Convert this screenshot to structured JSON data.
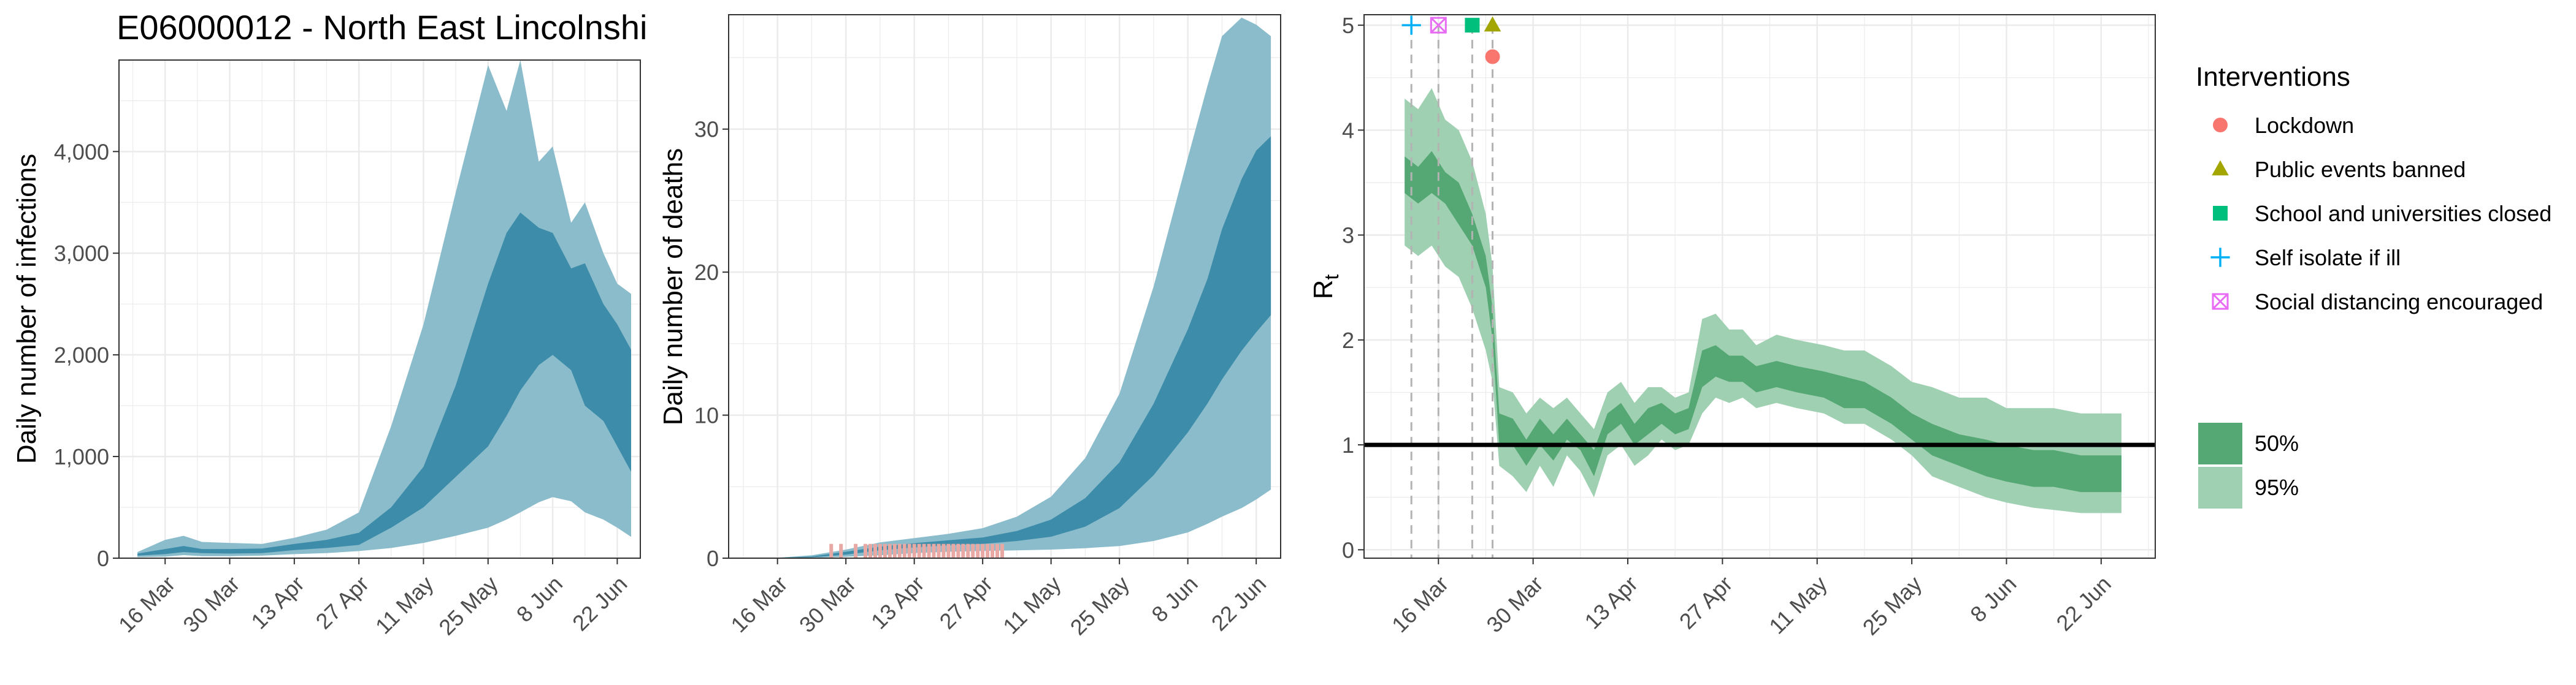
{
  "title": "E06000012 - North East Lincolnshi",
  "colors": {
    "band_95_blue": "#8bbccc",
    "band_50_blue": "#3d8ca9",
    "band_95_green": "#9fd0b2",
    "band_50_green": "#55a873",
    "deaths_bar": "#e8a9a4",
    "grid": "#ebebeb",
    "panel_border": "#333333",
    "lockdown": "#f8766d",
    "public_events": "#a3a500",
    "schools": "#00bf7d",
    "self_isolate": "#00b0f6",
    "social_distancing": "#e76bf3"
  },
  "chart_data": [
    {
      "type": "area",
      "ylabel": "Daily number of infections",
      "xlim": [
        "2020-03-06",
        "2020-06-27"
      ],
      "ylim": [
        0,
        4900
      ],
      "x_ticks": [
        "16 Mar",
        "30 Mar",
        "13 Apr",
        "27 Apr",
        "11 May",
        "25 May",
        "8 Jun",
        "22 Jun"
      ],
      "y_ticks": [
        {
          "value": 0,
          "label": "0"
        },
        {
          "value": 1000,
          "label": "1,000"
        },
        {
          "value": 2000,
          "label": "2,000"
        },
        {
          "value": 3000,
          "label": "3,000"
        },
        {
          "value": 4000,
          "label": "4,000"
        }
      ],
      "dates": [
        "2020-03-10",
        "2020-03-16",
        "2020-03-20",
        "2020-03-24",
        "2020-03-30",
        "2020-04-06",
        "2020-04-13",
        "2020-04-20",
        "2020-04-27",
        "2020-05-04",
        "2020-05-11",
        "2020-05-18",
        "2020-05-25",
        "2020-05-29",
        "2020-06-01",
        "2020-06-05",
        "2020-06-08",
        "2020-06-12",
        "2020-06-15",
        "2020-06-19",
        "2020-06-22",
        "2020-06-25"
      ],
      "ci95": {
        "low": [
          10,
          15,
          30,
          20,
          20,
          25,
          40,
          50,
          70,
          100,
          150,
          220,
          300,
          380,
          450,
          550,
          600,
          560,
          450,
          380,
          300,
          210
        ],
        "high": [
          60,
          180,
          220,
          160,
          150,
          140,
          200,
          280,
          450,
          1300,
          2300,
          3600,
          4850,
          4400,
          4900,
          3900,
          4050,
          3300,
          3500,
          3000,
          2700,
          2600
        ]
      },
      "ci50": {
        "low": [
          25,
          40,
          60,
          50,
          45,
          50,
          80,
          100,
          130,
          300,
          500,
          800,
          1100,
          1400,
          1650,
          1900,
          2000,
          1850,
          1500,
          1350,
          1100,
          850
        ],
        "high": [
          45,
          90,
          120,
          90,
          90,
          95,
          140,
          180,
          250,
          500,
          900,
          1700,
          2700,
          3200,
          3400,
          3250,
          3200,
          2850,
          2900,
          2500,
          2300,
          2050
        ]
      }
    },
    {
      "type": "area",
      "ylabel": "Daily number of deaths",
      "xlim": [
        "2020-03-06",
        "2020-06-27"
      ],
      "ylim": [
        0,
        38
      ],
      "x_ticks": [
        "16 Mar",
        "30 Mar",
        "13 Apr",
        "27 Apr",
        "11 May",
        "25 May",
        "8 Jun",
        "22 Jun"
      ],
      "y_ticks": [
        {
          "value": 0,
          "label": "0"
        },
        {
          "value": 10,
          "label": "10"
        },
        {
          "value": 20,
          "label": "20"
        },
        {
          "value": 30,
          "label": "30"
        }
      ],
      "dates": [
        "2020-03-10",
        "2020-03-16",
        "2020-03-23",
        "2020-03-30",
        "2020-04-06",
        "2020-04-13",
        "2020-04-20",
        "2020-04-27",
        "2020-05-04",
        "2020-05-11",
        "2020-05-18",
        "2020-05-25",
        "2020-06-01",
        "2020-06-08",
        "2020-06-12",
        "2020-06-15",
        "2020-06-19",
        "2020-06-22",
        "2020-06-25"
      ],
      "ci95": {
        "low": [
          0,
          0,
          0.02,
          0.1,
          0.2,
          0.35,
          0.45,
          0.5,
          0.55,
          0.6,
          0.7,
          0.85,
          1.2,
          1.8,
          2.4,
          2.9,
          3.5,
          4.1,
          4.8
        ],
        "high": [
          0.01,
          0.03,
          0.2,
          0.6,
          1.1,
          1.4,
          1.7,
          2.1,
          2.9,
          4.3,
          7.0,
          11.5,
          19.0,
          28.0,
          33.0,
          36.5,
          37.8,
          37.3,
          36.5
        ]
      },
      "ci50": {
        "low": [
          0,
          0.01,
          0.06,
          0.25,
          0.55,
          0.75,
          0.9,
          1.0,
          1.2,
          1.5,
          2.2,
          3.5,
          5.8,
          8.8,
          10.8,
          12.5,
          14.5,
          15.8,
          17.0
        ],
        "high": [
          0,
          0.02,
          0.12,
          0.45,
          0.8,
          1.05,
          1.25,
          1.45,
          1.9,
          2.7,
          4.2,
          6.7,
          10.8,
          16.0,
          19.5,
          23.0,
          26.5,
          28.5,
          29.5
        ]
      },
      "observed_dates": [
        "2020-03-27",
        "2020-03-29",
        "2020-04-01",
        "2020-04-03",
        "2020-04-04",
        "2020-04-05",
        "2020-04-06",
        "2020-04-07",
        "2020-04-08",
        "2020-04-09",
        "2020-04-10",
        "2020-04-11",
        "2020-04-12",
        "2020-04-13",
        "2020-04-14",
        "2020-04-15",
        "2020-04-16",
        "2020-04-17",
        "2020-04-18",
        "2020-04-19",
        "2020-04-20",
        "2020-04-21",
        "2020-04-22",
        "2020-04-23",
        "2020-04-24",
        "2020-04-25",
        "2020-04-26",
        "2020-04-27",
        "2020-04-28",
        "2020-04-29",
        "2020-04-30",
        "2020-05-01"
      ],
      "observed_deaths": [
        1,
        1,
        1,
        1,
        1,
        1,
        1,
        1,
        1,
        1,
        1,
        1,
        1,
        1,
        1,
        1,
        1,
        1,
        1,
        1,
        1,
        1,
        1,
        1,
        1,
        1,
        1,
        1,
        1,
        1,
        1,
        1
      ]
    },
    {
      "type": "area",
      "ylabel_main": "R",
      "ylabel_sub": "t",
      "xlim": [
        "2020-03-05",
        "2020-06-30"
      ],
      "ylim": [
        -0.08,
        5.1
      ],
      "x_ticks": [
        "16 Mar",
        "30 Mar",
        "13 Apr",
        "27 Apr",
        "11 May",
        "25 May",
        "8 Jun",
        "22 Jun"
      ],
      "y_ticks": [
        {
          "value": 0,
          "label": "0"
        },
        {
          "value": 1,
          "label": "1"
        },
        {
          "value": 2,
          "label": "2"
        },
        {
          "value": 3,
          "label": "3"
        },
        {
          "value": 4,
          "label": "4"
        },
        {
          "value": 5,
          "label": "5"
        }
      ],
      "reference_line": 1,
      "dates": [
        "2020-03-11",
        "2020-03-13",
        "2020-03-15",
        "2020-03-17",
        "2020-03-19",
        "2020-03-21",
        "2020-03-23",
        "2020-03-24",
        "2020-03-25",
        "2020-03-27",
        "2020-03-29",
        "2020-03-31",
        "2020-04-02",
        "2020-04-04",
        "2020-04-06",
        "2020-04-08",
        "2020-04-10",
        "2020-04-12",
        "2020-04-14",
        "2020-04-16",
        "2020-04-18",
        "2020-04-20",
        "2020-04-22",
        "2020-04-24",
        "2020-04-26",
        "2020-04-28",
        "2020-04-30",
        "2020-05-02",
        "2020-05-05",
        "2020-05-08",
        "2020-05-12",
        "2020-05-15",
        "2020-05-18",
        "2020-05-22",
        "2020-05-25",
        "2020-05-28",
        "2020-06-01",
        "2020-06-05",
        "2020-06-08",
        "2020-06-12",
        "2020-06-15",
        "2020-06-19",
        "2020-06-22",
        "2020-06-25"
      ],
      "ci95": {
        "low": [
          2.9,
          2.8,
          2.9,
          2.7,
          2.6,
          2.3,
          1.9,
          1.6,
          0.8,
          0.7,
          0.55,
          0.8,
          0.6,
          0.9,
          0.75,
          0.5,
          0.9,
          1.0,
          0.8,
          0.9,
          1.05,
          0.95,
          1.0,
          1.3,
          1.45,
          1.4,
          1.45,
          1.35,
          1.4,
          1.35,
          1.3,
          1.2,
          1.2,
          1.05,
          0.9,
          0.7,
          0.6,
          0.5,
          0.45,
          0.4,
          0.38,
          0.35,
          0.35,
          0.35
        ],
        "high": [
          4.3,
          4.2,
          4.4,
          4.1,
          4.0,
          3.7,
          3.2,
          2.7,
          1.55,
          1.5,
          1.3,
          1.45,
          1.35,
          1.45,
          1.3,
          1.15,
          1.5,
          1.6,
          1.4,
          1.55,
          1.55,
          1.45,
          1.5,
          2.2,
          2.25,
          2.1,
          2.1,
          1.95,
          2.05,
          2.0,
          1.95,
          1.9,
          1.9,
          1.75,
          1.6,
          1.55,
          1.45,
          1.45,
          1.35,
          1.35,
          1.35,
          1.3,
          1.3,
          1.3
        ]
      },
      "ci50": {
        "low": [
          3.4,
          3.3,
          3.4,
          3.3,
          3.1,
          2.9,
          2.5,
          2.0,
          1.0,
          1.0,
          0.8,
          1.0,
          0.85,
          1.05,
          0.95,
          0.7,
          1.1,
          1.2,
          1.0,
          1.1,
          1.2,
          1.1,
          1.15,
          1.55,
          1.65,
          1.6,
          1.6,
          1.5,
          1.55,
          1.5,
          1.45,
          1.35,
          1.35,
          1.2,
          1.05,
          0.9,
          0.8,
          0.7,
          0.65,
          0.6,
          0.6,
          0.55,
          0.55,
          0.55
        ],
        "high": [
          3.75,
          3.65,
          3.8,
          3.6,
          3.5,
          3.2,
          2.8,
          2.3,
          1.3,
          1.25,
          1.05,
          1.25,
          1.1,
          1.25,
          1.1,
          0.95,
          1.3,
          1.4,
          1.2,
          1.35,
          1.4,
          1.3,
          1.35,
          1.9,
          1.95,
          1.85,
          1.85,
          1.75,
          1.8,
          1.75,
          1.7,
          1.65,
          1.6,
          1.45,
          1.3,
          1.2,
          1.1,
          1.05,
          1.0,
          0.95,
          0.95,
          0.9,
          0.9,
          0.9
        ]
      },
      "interventions": [
        {
          "name": "Self isolate if ill",
          "date": "2020-03-12",
          "value": 5.0,
          "shape": "plus",
          "color": "#00b0f6"
        },
        {
          "name": "Social distancing encouraged",
          "date": "2020-03-16",
          "value": 5.0,
          "shape": "boxx",
          "color": "#e76bf3"
        },
        {
          "name": "School and universities closed",
          "date": "2020-03-21",
          "value": 5.0,
          "shape": "square",
          "color": "#00bf7d"
        },
        {
          "name": "Public events banned",
          "date": "2020-03-24",
          "value": 5.0,
          "shape": "triangle",
          "color": "#a3a500"
        },
        {
          "name": "Lockdown",
          "date": "2020-03-24",
          "value": 4.7,
          "shape": "circle",
          "color": "#f8766d"
        }
      ]
    }
  ],
  "legend": {
    "interventions_title": "Interventions",
    "items": [
      {
        "label": "Lockdown",
        "shape": "circle",
        "color": "#f8766d"
      },
      {
        "label": "Public events banned",
        "shape": "triangle",
        "color": "#a3a500"
      },
      {
        "label": "School and universities closed",
        "shape": "square",
        "color": "#00bf7d"
      },
      {
        "label": "Self isolate if ill",
        "shape": "plus",
        "color": "#00b0f6"
      },
      {
        "label": "Social distancing encouraged",
        "shape": "boxx",
        "color": "#e76bf3"
      }
    ],
    "ci_items": [
      {
        "label": "50%",
        "color": "#55a873"
      },
      {
        "label": "95%",
        "color": "#9fd0b2"
      }
    ]
  }
}
